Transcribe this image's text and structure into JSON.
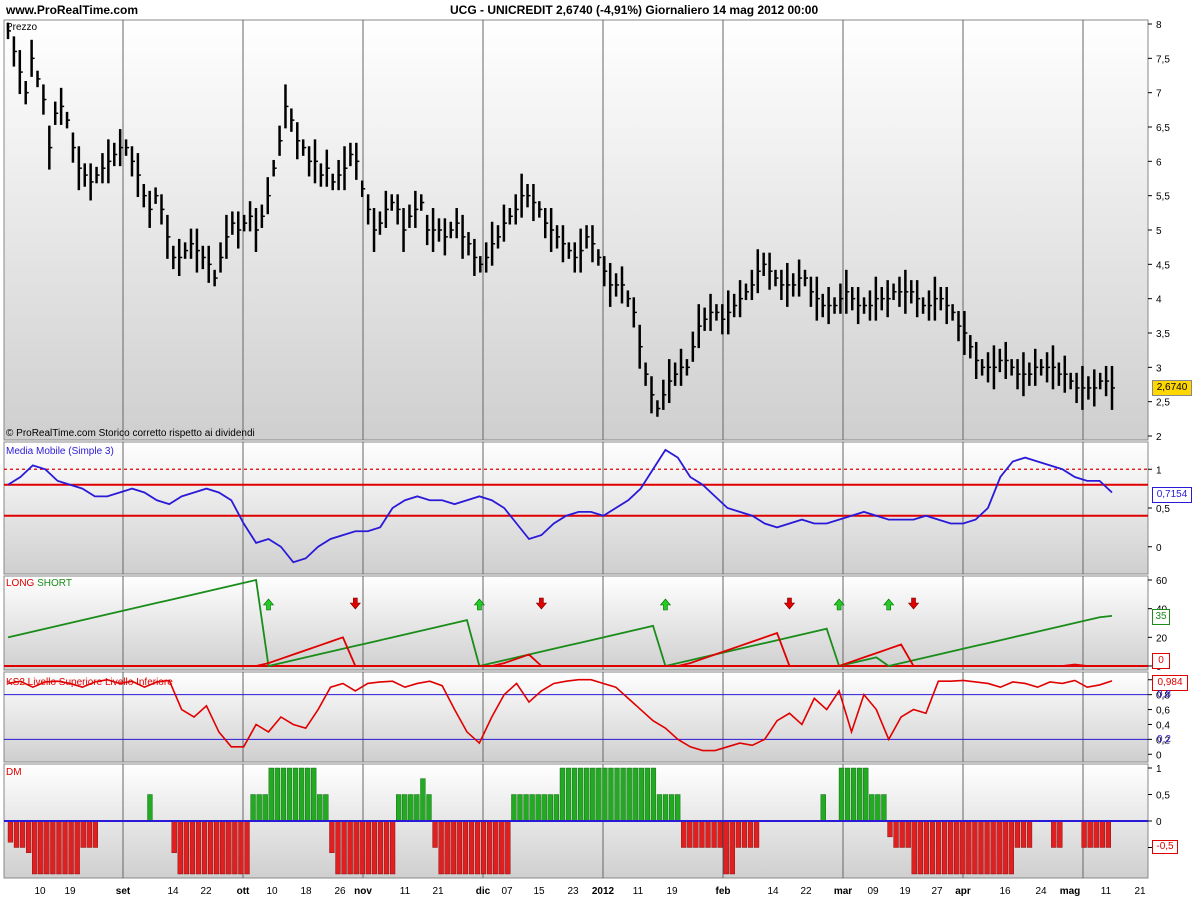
{
  "header": {
    "site": "www.ProRealTime.com",
    "title": "UCG - UNICREDIT    2,6740 (-4,91%)    Giornaliero  14 mag 2012 00:00"
  },
  "panels": {
    "price": {
      "label": "Prezzo",
      "footer": "© ProRealTime.com  Storico corretto rispetto ai dividendi",
      "last_value": "2,6740",
      "last_value_color": "#ffd700"
    },
    "ma": {
      "label": "Media Mobile (Simple 3)",
      "last_value": "0,7154",
      "line_color": "#2a1ad8",
      "level_color": "#e00000"
    },
    "ls": {
      "label_long": "LONG",
      "label_short": "SHORT",
      "long_color": "#1a8c1a",
      "short_color": "#e00000",
      "last_long": "35",
      "last_short": "0"
    },
    "ks": {
      "label": "KS2 Livello Superiore Livello Inferiore",
      "last_value": "0,984",
      "upper_label": "0,8",
      "lower_label": "0,2"
    },
    "dm": {
      "label": "DM",
      "neg_label": "-0,5"
    }
  },
  "x_labels": [
    "10",
    "19",
    "set",
    "14",
    "22",
    "ott",
    "10",
    "18",
    "26",
    "nov",
    "11",
    "21",
    "dic",
    "07",
    "15",
    "23",
    "2012",
    "11",
    "19",
    "feb",
    "14",
    "22",
    "mar",
    "09",
    "19",
    "27",
    "apr",
    "16",
    "24",
    "mag",
    "11",
    "21"
  ],
  "chart_data": [
    {
      "type": "bar",
      "name": "Prezzo",
      "ylim": [
        2,
        8
      ],
      "yticks": [
        "2",
        "2,5",
        "3",
        "3,5",
        "4",
        "4,5",
        "5",
        "5,5",
        "6",
        "6,5",
        "7",
        "7,5",
        "8"
      ],
      "closes": [
        7.9,
        7.6,
        7.3,
        7.0,
        7.5,
        7.2,
        6.9,
        6.2,
        6.7,
        6.8,
        6.6,
        6.2,
        5.9,
        5.8,
        5.7,
        5.8,
        5.9,
        6.0,
        6.1,
        6.2,
        6.2,
        6.0,
        5.8,
        5.5,
        5.3,
        5.5,
        5.3,
        4.9,
        4.6,
        4.6,
        4.7,
        4.8,
        4.7,
        4.6,
        4.5,
        4.3,
        4.6,
        4.9,
        5.1,
        5.0,
        5.1,
        5.2,
        5.0,
        5.2,
        5.5,
        5.9,
        6.3,
        6.8,
        6.6,
        6.3,
        6.2,
        6.0,
        6.0,
        5.8,
        5.9,
        5.7,
        5.8,
        5.9,
        6.1,
        6.0,
        5.6,
        5.3,
        5.0,
        5.1,
        5.3,
        5.4,
        5.3,
        5.0,
        5.2,
        5.3,
        5.4,
        5.0,
        5.0,
        5.0,
        4.9,
        5.0,
        5.1,
        4.9,
        4.8,
        4.6,
        4.5,
        4.6,
        4.8,
        4.9,
        5.1,
        5.2,
        5.3,
        5.5,
        5.5,
        5.4,
        5.3,
        5.1,
        5.0,
        4.9,
        4.8,
        4.7,
        4.6,
        4.7,
        4.9,
        4.8,
        4.6,
        4.4,
        4.2,
        4.2,
        4.2,
        4.0,
        3.8,
        3.3,
        2.9,
        2.6,
        2.4,
        2.6,
        2.8,
        2.9,
        3.0,
        3.0,
        3.3,
        3.6,
        3.7,
        3.8,
        3.8,
        3.7,
        3.8,
        3.9,
        4.0,
        4.1,
        4.2,
        4.4,
        4.5,
        4.4,
        4.3,
        4.2,
        4.2,
        4.2,
        4.3,
        4.3,
        4.1,
        4.0,
        3.9,
        3.9,
        3.9,
        4.0,
        4.1,
        4.0,
        3.9,
        3.9,
        3.9,
        4.0,
        4.0,
        4.0,
        4.1,
        4.1,
        4.1,
        4.1,
        4.0,
        3.9,
        3.9,
        4.0,
        4.0,
        3.9,
        3.8,
        3.6,
        3.5,
        3.3,
        3.1,
        3.0,
        3.0,
        3.0,
        3.1,
        3.1,
        3.0,
        2.9,
        2.9,
        2.9,
        3.0,
        3.0,
        3.0,
        3.0,
        2.9,
        2.9,
        2.8,
        2.7,
        2.7,
        2.7,
        2.7,
        2.8,
        2.8,
        2.7
      ]
    },
    {
      "type": "line",
      "name": "Media Mobile (Simple 3)",
      "ylim": [
        -0.3,
        1.3
      ],
      "yticks": [
        "0",
        "0,5",
        "1"
      ],
      "levels": [
        1,
        0.8,
        0.4
      ],
      "values": [
        0.8,
        0.9,
        1.05,
        1.0,
        0.85,
        0.8,
        0.75,
        0.65,
        0.65,
        0.7,
        0.75,
        0.7,
        0.6,
        0.55,
        0.65,
        0.7,
        0.75,
        0.7,
        0.6,
        0.3,
        0.05,
        0.1,
        0.0,
        -0.2,
        -0.15,
        0.0,
        0.1,
        0.15,
        0.2,
        0.2,
        0.25,
        0.5,
        0.6,
        0.65,
        0.6,
        0.6,
        0.55,
        0.6,
        0.65,
        0.6,
        0.5,
        0.3,
        0.1,
        0.15,
        0.3,
        0.4,
        0.45,
        0.45,
        0.4,
        0.5,
        0.6,
        0.75,
        1.0,
        1.25,
        1.15,
        0.9,
        0.8,
        0.65,
        0.5,
        0.45,
        0.4,
        0.3,
        0.25,
        0.3,
        0.35,
        0.3,
        0.3,
        0.35,
        0.4,
        0.45,
        0.4,
        0.35,
        0.35,
        0.35,
        0.4,
        0.35,
        0.3,
        0.3,
        0.35,
        0.5,
        0.9,
        1.1,
        1.15,
        1.1,
        1.05,
        1.0,
        0.9,
        0.85,
        0.85,
        0.7
      ]
    },
    {
      "type": "line",
      "name": "LONG SHORT",
      "ylim": [
        0,
        60
      ],
      "yticks": [
        "0",
        "20",
        "40",
        "60"
      ],
      "long": [
        20,
        22,
        24,
        26,
        28,
        30,
        32,
        34,
        36,
        38,
        40,
        42,
        44,
        46,
        48,
        50,
        52,
        54,
        56,
        58,
        60,
        0,
        2,
        4,
        6,
        8,
        10,
        12,
        14,
        16,
        18,
        20,
        22,
        24,
        26,
        28,
        30,
        32,
        0,
        2,
        4,
        6,
        8,
        10,
        12,
        14,
        16,
        18,
        20,
        22,
        24,
        26,
        28,
        0,
        2,
        4,
        6,
        8,
        10,
        12,
        14,
        16,
        18,
        20,
        22,
        24,
        26,
        0,
        2,
        4,
        6,
        0,
        2,
        4,
        6,
        8,
        10,
        12,
        14,
        16,
        18,
        20,
        22,
        24,
        26,
        28,
        30,
        32,
        34,
        35
      ],
      "short": [
        0,
        0,
        0,
        0,
        0,
        0,
        0,
        0,
        0,
        0,
        0,
        0,
        0,
        0,
        0,
        0,
        0,
        0,
        0,
        0,
        0,
        2,
        5,
        8,
        11,
        14,
        17,
        20,
        0,
        0,
        0,
        0,
        0,
        0,
        0,
        0,
        0,
        0,
        0,
        0,
        2,
        5,
        8,
        0,
        0,
        0,
        0,
        0,
        0,
        0,
        0,
        0,
        0,
        0,
        0,
        2,
        5,
        8,
        11,
        14,
        17,
        20,
        23,
        0,
        0,
        0,
        0,
        0,
        3,
        6,
        9,
        12,
        15,
        0,
        0,
        0,
        0,
        0,
        0,
        0,
        0,
        0,
        0,
        0,
        0,
        0,
        1,
        0,
        0,
        0
      ],
      "signals": [
        "long",
        "short",
        "long",
        "short",
        "long",
        "short",
        "long",
        "short"
      ]
    },
    {
      "type": "line",
      "name": "KS2 Livello Superiore Livello Inferiore",
      "ylim": [
        -0.05,
        1.05
      ],
      "yticks": [
        "0",
        "0,2",
        "0,4",
        "0,6",
        "0,8",
        "1"
      ],
      "levels": [
        0.8,
        0.2
      ],
      "values": [
        0.95,
        0.98,
        0.9,
        0.97,
        0.98,
        0.95,
        0.9,
        0.97,
        1.0,
        0.95,
        0.98,
        0.9,
        0.97,
        0.99,
        0.6,
        0.5,
        0.65,
        0.3,
        0.1,
        0.1,
        0.4,
        0.3,
        0.5,
        0.4,
        0.35,
        0.6,
        0.9,
        0.95,
        0.85,
        0.95,
        0.97,
        0.98,
        0.9,
        0.95,
        0.98,
        0.92,
        0.6,
        0.3,
        0.15,
        0.5,
        0.8,
        0.95,
        0.7,
        0.85,
        0.95,
        0.98,
        1.0,
        1.0,
        0.95,
        0.9,
        0.75,
        0.6,
        0.45,
        0.35,
        0.2,
        0.1,
        0.05,
        0.05,
        0.1,
        0.15,
        0.12,
        0.2,
        0.45,
        0.55,
        0.4,
        0.75,
        0.6,
        0.85,
        0.3,
        0.8,
        0.6,
        0.2,
        0.5,
        0.6,
        0.55,
        0.98,
        0.98,
        0.99,
        0.97,
        0.95,
        0.9,
        0.97,
        0.95,
        0.9,
        0.97,
        0.95,
        0.99,
        0.9,
        0.93,
        0.984
      ]
    },
    {
      "type": "bar",
      "name": "DM",
      "ylim": [
        -1,
        1
      ],
      "yticks": [
        "-0,5",
        "0",
        "0,5",
        "1"
      ],
      "values": [
        -0.4,
        -0.5,
        -0.5,
        -0.6,
        -1,
        -1,
        -1,
        -1,
        -1,
        -1,
        -1,
        -1,
        -0.5,
        -0.5,
        -0.5,
        0,
        0,
        0,
        0,
        0,
        0,
        0,
        0,
        0.5,
        0,
        0,
        0,
        -0.6,
        -1,
        -1,
        -1,
        -1,
        -1,
        -1,
        -1,
        -1,
        -1,
        -1,
        -1,
        -1,
        0.5,
        0.5,
        0.5,
        1,
        1,
        1,
        1,
        1,
        1,
        1,
        1,
        0.5,
        0.5,
        -0.6,
        -1,
        -1,
        -1,
        -1,
        -1,
        -1,
        -1,
        -1,
        -1,
        -1,
        0.5,
        0.5,
        0.5,
        0.5,
        0.8,
        0.5,
        -0.5,
        -1,
        -1,
        -1,
        -1,
        -1,
        -1,
        -1,
        -1,
        -1,
        -1,
        -1,
        -1,
        0.5,
        0.5,
        0.5,
        0.5,
        0.5,
        0.5,
        0.5,
        0.5,
        1,
        1,
        1,
        1,
        1,
        1,
        1,
        1,
        1,
        1,
        1,
        1,
        1,
        1,
        1,
        1,
        0.5,
        0.5,
        0.5,
        0.5,
        -0.5,
        -0.5,
        -0.5,
        -0.5,
        -0.5,
        -0.5,
        -0.5,
        -1,
        -1,
        -0.5,
        -0.5,
        -0.5,
        -0.5,
        0,
        0,
        0,
        0,
        0,
        0,
        0,
        0,
        0,
        0,
        0.5,
        0,
        0,
        1,
        1,
        1,
        1,
        1,
        0.5,
        0.5,
        0.5,
        -0.3,
        -0.5,
        -0.5,
        -0.5,
        -1,
        -1,
        -1,
        -1,
        -1,
        -1,
        -1,
        -1,
        -1,
        -1,
        -1,
        -1,
        -1,
        -1,
        -1,
        -1,
        -1,
        -0.5,
        -0.5,
        -0.5,
        0,
        0,
        0,
        -0.5,
        -0.5,
        0,
        0,
        0,
        -0.5,
        -0.5,
        -0.5,
        -0.5,
        -0.5
      ]
    }
  ]
}
